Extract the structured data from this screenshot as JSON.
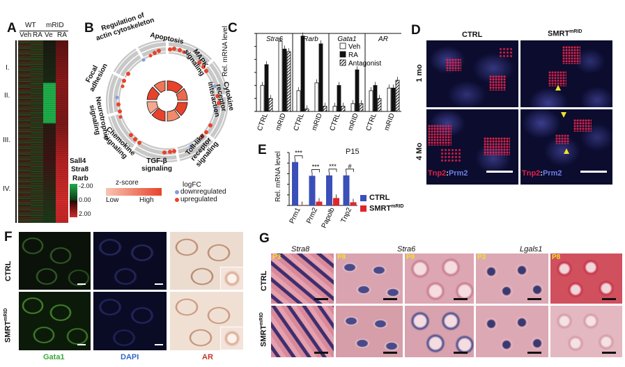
{
  "panels": {
    "A": {
      "label": "A",
      "group_wt": "WT",
      "group_mrid": "mRID",
      "columns": [
        "Veh",
        "RA",
        "Ve",
        "RA"
      ],
      "clusters": [
        "I.",
        "II.",
        "III.",
        "IV."
      ],
      "genes": [
        "Sall4",
        "Stra8",
        "Rarb"
      ],
      "scale": [
        "-2.00",
        "0.00",
        "2.00"
      ]
    },
    "B": {
      "label": "B",
      "categories": [
        "Regulation of actin cytoskeleton",
        "Apoptosis",
        "MAPK signaling",
        "Cytokine receptor interaction",
        "Toll-like receptor signaling",
        "TGF-β signaling",
        "Chemokine signaling",
        "Neurotrophin signaling",
        "Focal adhesion"
      ],
      "zscore_title": "z-score",
      "zscore_low": "Low",
      "zscore_high": "High",
      "logfc_title": "logFC",
      "down": "downregulated",
      "up": "upregulated"
    },
    "C": {
      "label": "C",
      "ylabel": "Rel. mRNA level",
      "genes": [
        "Stra6",
        "Rarb",
        "Gata1",
        "AR"
      ],
      "groups": [
        "CTRL",
        "mRID"
      ],
      "legend": [
        "Veh",
        "RA",
        "Antagonist"
      ]
    },
    "D": {
      "label": "D",
      "col1": "CTRL",
      "col2_main": "SMRT",
      "col2_sup": "mRID",
      "row1": "1 mo",
      "row2": "4 Mo",
      "stain_red": "Tnp2",
      "stain_sep": ":",
      "stain_blue": "Prm2"
    },
    "E": {
      "label": "E",
      "title": "P15",
      "ylabel": "Rel. mRNA level",
      "legend_ctrl": "CTRL",
      "legend_smrt": "SMRT",
      "legend_smrt_sup": "mRID",
      "significance": [
        "***",
        "***",
        "***",
        "#"
      ]
    },
    "F": {
      "label": "F",
      "rows": [
        "CTRL",
        "SMRT",
        "mRID"
      ],
      "stains": [
        "Gata1",
        "DAPI",
        "AR"
      ]
    },
    "G": {
      "label": "G",
      "genes": [
        "Stra8",
        "Stra6",
        "Lgals1"
      ],
      "rows": [
        "CTRL",
        "SMRT",
        "mRID"
      ],
      "ages": [
        "P3",
        "P8",
        "P8",
        "P3",
        "P8"
      ]
    }
  },
  "colors": {
    "ctrl_bar": "#3b4fb8",
    "smrt_bar": "#e0262b",
    "heat_green": "#1fae4a",
    "heat_red": "#d22a2a",
    "zscore_high": "#e8432a"
  },
  "chart_data": [
    {
      "type": "bar",
      "title": "",
      "ylabel": "Rel. mRNA level",
      "categories": [
        "Stra6 CTRL",
        "Stra6 mRID",
        "Rarb CTRL",
        "Rarb mRID",
        "Gata1 CTRL",
        "Gata1 mRID",
        "AR CTRL",
        "AR mRID"
      ],
      "ylim": [
        0,
        3
      ],
      "series": [
        {
          "name": "Veh",
          "values": [
            1.0,
            2.7,
            0.8,
            1.1,
            0.2,
            0.3,
            0.8,
            0.9
          ]
        },
        {
          "name": "RA",
          "values": [
            1.8,
            2.4,
            2.9,
            2.6,
            1.0,
            1.6,
            1.0,
            0.9
          ]
        },
        {
          "name": "Antagonist",
          "values": [
            0.5,
            2.3,
            0.1,
            0.2,
            0.2,
            0.3,
            0.5,
            1.2
          ]
        }
      ]
    },
    {
      "type": "bar",
      "title": "P15",
      "ylabel": "Rel. mRNA level",
      "categories": [
        "Prm1",
        "Prm2",
        "Papolb",
        "Tnp2"
      ],
      "ylim": [
        0,
        2.5
      ],
      "series": [
        {
          "name": "CTRL",
          "values": [
            2.05,
            1.4,
            1.42,
            1.42
          ]
        },
        {
          "name": "SMRTmRID",
          "values": [
            0.02,
            0.18,
            0.35,
            0.15
          ]
        }
      ]
    }
  ]
}
